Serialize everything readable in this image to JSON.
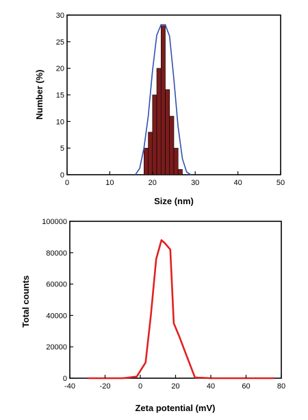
{
  "chart_data": [
    {
      "type": "bar",
      "xlabel": "Size (nm)",
      "ylabel": "Number (%)",
      "xlim": [
        0,
        50
      ],
      "ylim": [
        0,
        30
      ],
      "xticks": [
        0,
        10,
        20,
        30,
        40,
        50
      ],
      "yticks": [
        0,
        5,
        10,
        15,
        20,
        25,
        30
      ],
      "bars": {
        "x": [
          18.5,
          19.5,
          20.5,
          21.5,
          22.5,
          23.5,
          24.5,
          25.5,
          26.5
        ],
        "values": [
          5,
          8,
          15,
          20,
          28,
          16,
          11,
          5,
          1
        ],
        "color": "#7a1c1c"
      },
      "fit_curve": {
        "x": [
          16,
          17,
          18,
          19,
          20,
          21,
          22,
          23,
          24,
          25,
          26,
          27,
          28,
          29
        ],
        "values": [
          0,
          1.2,
          5.0,
          11.0,
          19.5,
          26.2,
          28.2,
          28.2,
          26.0,
          18.0,
          9.0,
          3.0,
          0.5,
          0
        ],
        "color": "#2d4fb2"
      }
    },
    {
      "type": "line",
      "xlabel": "Zeta potential (mV)",
      "ylabel": "Total counts",
      "xlim": [
        -40,
        80
      ],
      "ylim": [
        0,
        100000
      ],
      "xticks": [
        -40,
        -20,
        0,
        20,
        40,
        60,
        80
      ],
      "yticks": [
        0,
        20000,
        40000,
        60000,
        80000,
        100000
      ],
      "series": [
        {
          "color": "#e02020",
          "x": [
            -30,
            -10,
            -2,
            3,
            6,
            9,
            12,
            14,
            17,
            19,
            22,
            26,
            31,
            40,
            60,
            76
          ],
          "values": [
            0,
            0,
            1000,
            10000,
            40000,
            76000,
            88000,
            86000,
            82000,
            35000,
            27000,
            15000,
            500,
            0,
            0,
            0
          ]
        }
      ]
    }
  ]
}
